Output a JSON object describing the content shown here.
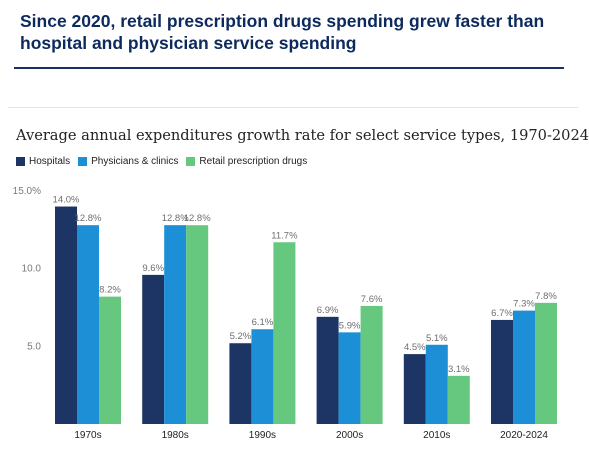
{
  "headline": "Since 2020, retail prescription drugs spending grew faster than hospital and physician service spending",
  "chart_data": {
    "type": "bar",
    "title": "Average annual expenditures growth rate for select service types, 1970-2024",
    "categories": [
      "1970s",
      "1980s",
      "1990s",
      "2000s",
      "2010s",
      "2020-2024"
    ],
    "series": [
      {
        "name": "Hospitals",
        "color": "#1d3564",
        "values": [
          14.0,
          9.6,
          5.2,
          6.9,
          4.5,
          6.7
        ],
        "labels": [
          "14.0%",
          "9.6%",
          "5.2%",
          "6.9%",
          "4.5%",
          "6.7%"
        ]
      },
      {
        "name": "Physicians & clinics",
        "color": "#1c8fd6",
        "values": [
          12.8,
          12.8,
          6.1,
          5.9,
          5.1,
          7.3
        ],
        "labels": [
          "12.8%",
          "12.8%",
          "6.1%",
          "5.9%",
          "5.1%",
          "7.3%"
        ]
      },
      {
        "name": "Retail prescription drugs",
        "color": "#66c87f",
        "values": [
          8.2,
          12.8,
          11.7,
          7.6,
          3.1,
          7.8
        ],
        "labels": [
          "8.2%",
          "12.8%",
          "11.7%",
          "7.6%",
          "3.1%",
          "7.8%"
        ]
      }
    ],
    "yticks": [
      "15.0%",
      "10.0",
      "5.0"
    ],
    "ylim": [
      0,
      15
    ],
    "xlabel": "",
    "ylabel": "",
    "grid": false,
    "legend_position": "top-left"
  }
}
